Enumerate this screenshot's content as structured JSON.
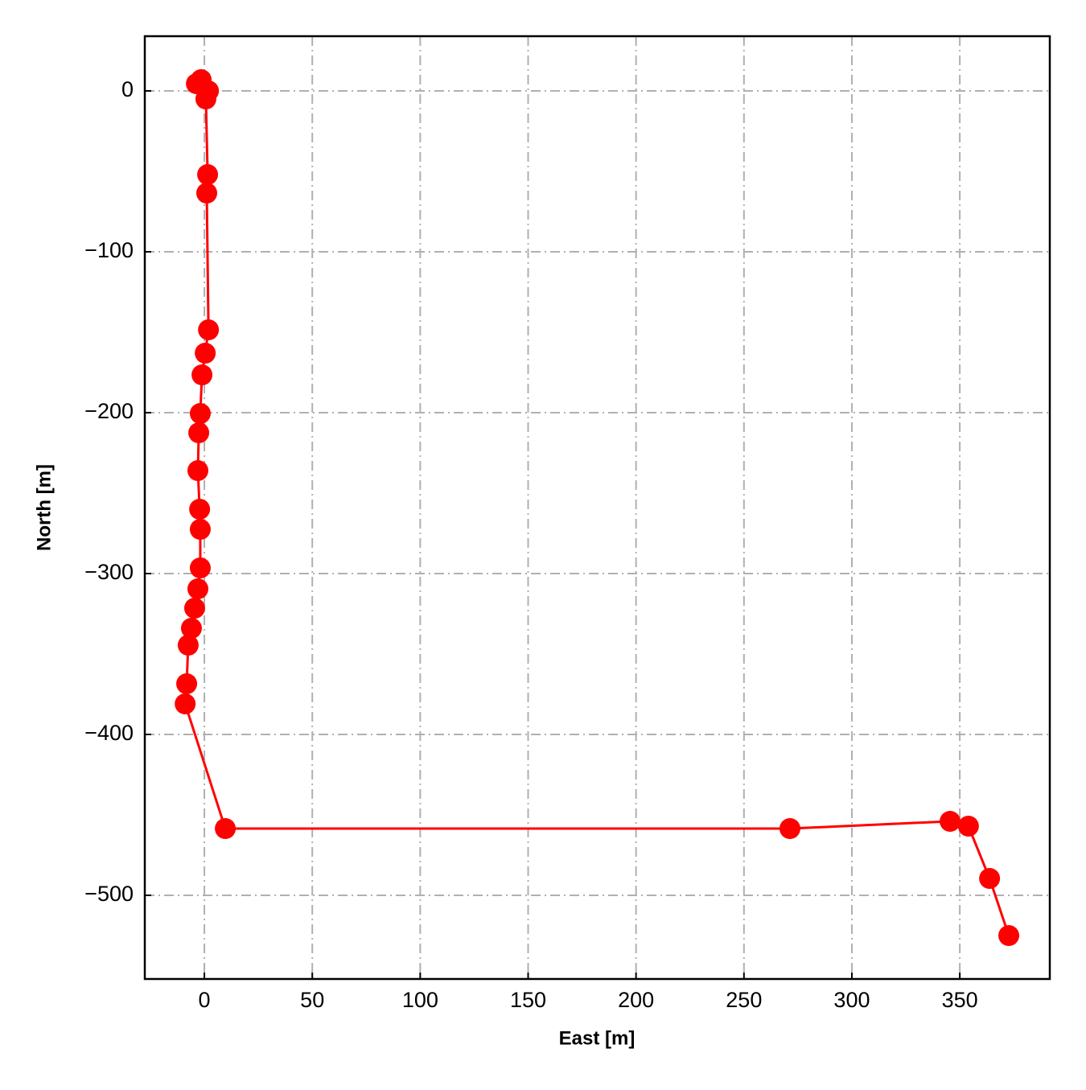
{
  "chart_data": {
    "type": "line",
    "x_label": "East [m]",
    "y_label": "North [m]",
    "xlim": [
      -27.6,
      391.7
    ],
    "ylim": [
      -552,
      34
    ],
    "xticks": [
      0,
      50,
      100,
      150,
      200,
      250,
      300,
      350
    ],
    "yticks": [
      {
        "value": -500,
        "label": "−500"
      },
      {
        "value": -400,
        "label": "−400"
      },
      {
        "value": -300,
        "label": "−300"
      },
      {
        "value": -200,
        "label": "−200"
      },
      {
        "value": -100,
        "label": "−100"
      },
      0
    ],
    "grid": true,
    "series": [
      {
        "color": "#ff0000",
        "x": [
          -1.5,
          -3.7,
          1.9,
          0.7,
          1.5,
          1.1,
          1.9,
          0.4,
          -1.1,
          -1.9,
          -2.6,
          -3,
          -2.2,
          -1.9,
          -1.9,
          -3,
          -4.5,
          -6,
          -7.5,
          -8.2,
          -8.9,
          9.7,
          271.3,
          345.5,
          354,
          363.8,
          372.7
        ],
        "values": [
          7,
          4.5,
          0,
          -5,
          -52,
          -63.5,
          -148.5,
          -163,
          -176.5,
          -200.5,
          -212.5,
          -236,
          -260,
          -272.5,
          -296.5,
          -309.5,
          -321.5,
          -334,
          -344.5,
          -368.5,
          -381,
          -458.5,
          -458.5,
          -454,
          -457,
          -489.5,
          -525
        ]
      }
    ]
  }
}
